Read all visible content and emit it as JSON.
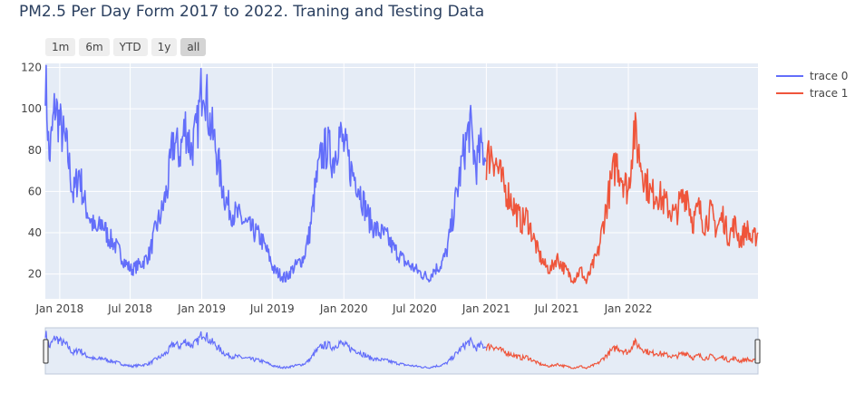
{
  "chart_data": {
    "type": "line",
    "title": "PM2.5 Per Day Form 2017 to 2022. Traning and Testing Data",
    "range_selector": [
      "1m",
      "6m",
      "YTD",
      "1y",
      "all"
    ],
    "range_selector_active": "all",
    "ylim": [
      8,
      122
    ],
    "yticks": [
      20,
      40,
      60,
      80,
      100,
      120
    ],
    "xticks": [
      "Jan 2018",
      "Jul 2018",
      "Jan 2019",
      "Jul 2019",
      "Jan 2020",
      "Jul 2020",
      "Jan 2021",
      "Jul 2021",
      "Jan 2022"
    ],
    "xrange": [
      "2017-11-25",
      "2022-11-30"
    ],
    "legend_position": "top-right",
    "colors": {
      "trace0": "#636efa",
      "trace1": "#ef553b",
      "plot_bg": "#e5ecf6"
    },
    "series": [
      {
        "name": "trace 0",
        "color": "#636efa",
        "x": [
          "2017-11-25",
          "2017-12-05",
          "2017-12-20",
          "2018-01-05",
          "2018-01-20",
          "2018-02-05",
          "2018-02-20",
          "2018-03-05",
          "2018-03-20",
          "2018-04-05",
          "2018-04-20",
          "2018-05-05",
          "2018-05-20",
          "2018-06-05",
          "2018-06-20",
          "2018-07-05",
          "2018-07-20",
          "2018-08-05",
          "2018-08-20",
          "2018-09-05",
          "2018-09-20",
          "2018-10-05",
          "2018-10-20",
          "2018-11-05",
          "2018-11-20",
          "2018-12-05",
          "2018-12-20",
          "2019-01-05",
          "2019-01-20",
          "2019-02-05",
          "2019-02-20",
          "2019-03-05",
          "2019-03-20",
          "2019-04-05",
          "2019-04-20",
          "2019-05-05",
          "2019-05-20",
          "2019-06-05",
          "2019-06-20",
          "2019-07-05",
          "2019-07-20",
          "2019-08-05",
          "2019-08-20",
          "2019-09-05",
          "2019-09-20",
          "2019-10-05",
          "2019-10-20",
          "2019-11-05",
          "2019-11-20",
          "2019-12-05",
          "2019-12-20",
          "2020-01-05",
          "2020-01-20",
          "2020-02-05",
          "2020-02-20",
          "2020-03-05",
          "2020-03-20",
          "2020-04-05",
          "2020-04-20",
          "2020-05-05",
          "2020-05-20",
          "2020-06-05",
          "2020-06-20",
          "2020-07-05",
          "2020-07-20",
          "2020-08-05",
          "2020-08-20",
          "2020-09-05",
          "2020-09-20",
          "2020-10-05",
          "2020-10-20",
          "2020-11-05",
          "2020-11-20",
          "2020-12-05",
          "2020-12-20",
          "2021-01-01"
        ],
        "values": [
          118,
          75,
          102,
          90,
          80,
          58,
          70,
          55,
          47,
          40,
          45,
          38,
          35,
          30,
          25,
          22,
          24,
          26,
          30,
          42,
          50,
          62,
          85,
          78,
          92,
          80,
          90,
          118,
          95,
          82,
          65,
          55,
          50,
          48,
          45,
          42,
          40,
          36,
          30,
          22,
          20,
          18,
          22,
          25,
          28,
          40,
          62,
          78,
          82,
          75,
          88,
          80,
          70,
          65,
          55,
          47,
          42,
          40,
          38,
          33,
          30,
          26,
          24,
          22,
          20,
          18,
          22,
          24,
          30,
          45,
          62,
          80,
          92,
          72,
          82,
          75
        ]
      },
      {
        "name": "trace 1",
        "color": "#ef553b",
        "x": [
          "2021-01-01",
          "2021-01-15",
          "2021-02-01",
          "2021-02-15",
          "2021-03-01",
          "2021-03-15",
          "2021-04-01",
          "2021-04-15",
          "2021-05-01",
          "2021-05-15",
          "2021-06-01",
          "2021-06-15",
          "2021-07-01",
          "2021-07-15",
          "2021-08-01",
          "2021-08-15",
          "2021-09-01",
          "2021-09-15",
          "2021-10-01",
          "2021-10-15",
          "2021-11-01",
          "2021-11-15",
          "2021-12-01",
          "2021-12-15",
          "2022-01-01",
          "2022-01-15",
          "2022-02-01",
          "2022-02-15",
          "2022-03-01",
          "2022-03-15",
          "2022-04-01",
          "2022-04-15",
          "2022-05-01",
          "2022-05-15",
          "2022-06-01",
          "2022-06-15",
          "2022-07-01",
          "2022-07-15",
          "2022-08-01",
          "2022-08-15",
          "2022-09-01",
          "2022-09-15",
          "2022-10-01",
          "2022-10-15",
          "2022-11-01",
          "2022-11-15",
          "2022-11-30"
        ],
        "values": [
          75,
          80,
          70,
          62,
          58,
          52,
          45,
          48,
          38,
          30,
          24,
          22,
          28,
          24,
          20,
          18,
          22,
          16,
          24,
          30,
          48,
          62,
          75,
          68,
          60,
          90,
          75,
          65,
          58,
          60,
          55,
          52,
          48,
          55,
          60,
          45,
          52,
          44,
          50,
          42,
          48,
          38,
          44,
          36,
          42,
          36,
          40
        ]
      }
    ]
  }
}
